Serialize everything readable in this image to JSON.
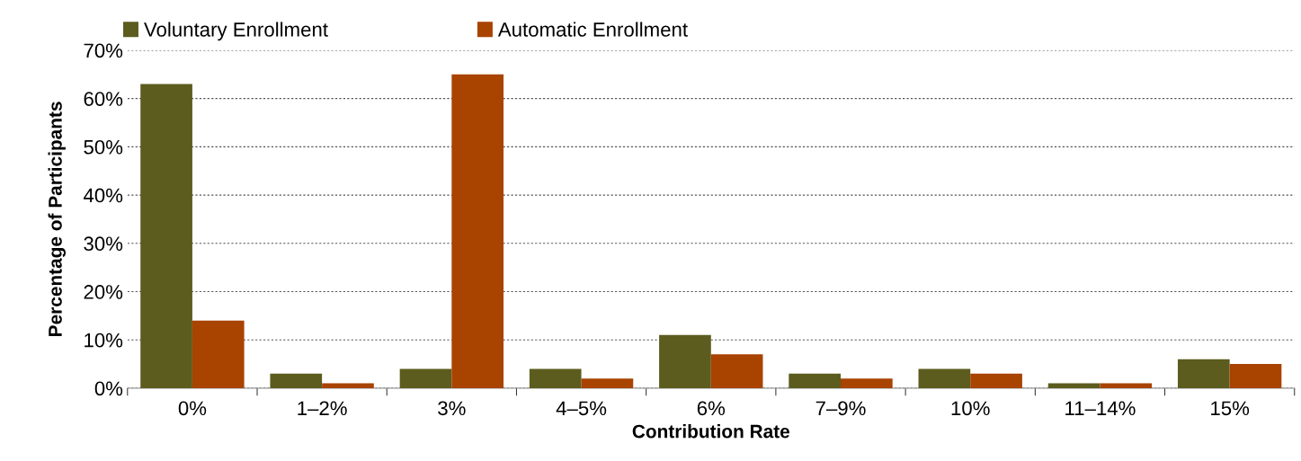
{
  "chart_data": {
    "type": "bar",
    "xlabel": "Contribution Rate",
    "ylabel": "Percentage of Participants",
    "categories": [
      "0%",
      "1–2%",
      "3%",
      "4–5%",
      "6%",
      "7–9%",
      "10%",
      "11–14%",
      "15%"
    ],
    "series": [
      {
        "name": "Voluntary Enrollment",
        "color": "#5c5c1f",
        "values": [
          63,
          3,
          4,
          4,
          11,
          3,
          4,
          1,
          6
        ]
      },
      {
        "name": "Automatic Enrollment",
        "color": "#a84300",
        "values": [
          14,
          1,
          65,
          2,
          7,
          2,
          3,
          1,
          5
        ]
      }
    ],
    "ylim": [
      0,
      70
    ],
    "yticks": [
      {
        "value": 0,
        "label": "0%"
      },
      {
        "value": 10,
        "label": "10%"
      },
      {
        "value": 20,
        "label": "20%"
      },
      {
        "value": 30,
        "label": "30%"
      },
      {
        "value": 40,
        "label": "40%"
      },
      {
        "value": 50,
        "label": "50%"
      },
      {
        "value": 60,
        "label": "60%"
      },
      {
        "value": 70,
        "label": "70%"
      }
    ],
    "grid": "y",
    "legend": "top left"
  }
}
